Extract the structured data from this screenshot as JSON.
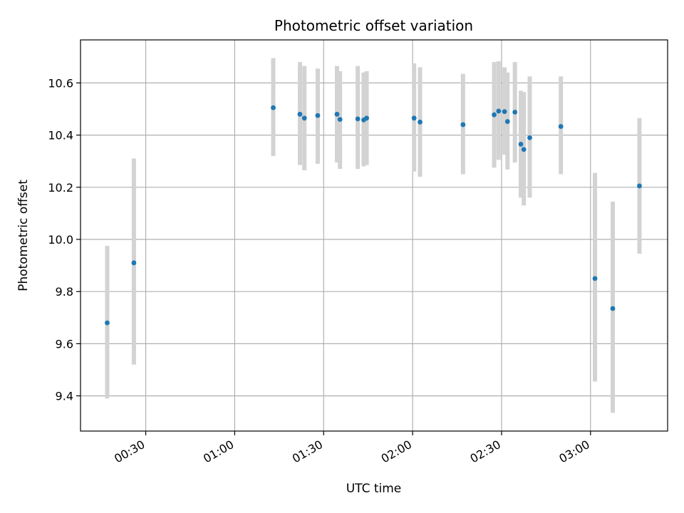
{
  "chart_data": {
    "type": "scatter",
    "title": "Photometric offset variation",
    "xlabel": "UTC time",
    "ylabel": "Photometric offset",
    "x_axis_kind": "time",
    "xlim": [
      "00:08:00",
      "03:26:00"
    ],
    "ylim": [
      9.265,
      10.765
    ],
    "x_ticks": [
      "00:30",
      "01:00",
      "01:30",
      "02:00",
      "02:30",
      "03:00"
    ],
    "y_ticks": [
      9.4,
      9.6,
      9.8,
      10.0,
      10.2,
      10.4,
      10.6
    ],
    "y_tick_labels": [
      "9.4",
      "9.6",
      "9.8",
      "10.0",
      "10.2",
      "10.4",
      "10.6"
    ],
    "grid": true,
    "legend": null,
    "colors": {
      "marker": "#1f77b4",
      "errorbar": "#d3d3d3",
      "grid": "#b0b0b0"
    },
    "points": [
      {
        "x": "00:17:00",
        "y": 9.68,
        "yerr_low": 9.39,
        "yerr_high": 9.975
      },
      {
        "x": "00:26:00",
        "y": 9.91,
        "yerr_low": 9.52,
        "yerr_high": 10.31
      },
      {
        "x": "01:13:00",
        "y": 10.505,
        "yerr_low": 10.32,
        "yerr_high": 10.695
      },
      {
        "x": "01:22:00",
        "y": 10.48,
        "yerr_low": 10.285,
        "yerr_high": 10.68
      },
      {
        "x": "01:23:30",
        "y": 10.465,
        "yerr_low": 10.265,
        "yerr_high": 10.665
      },
      {
        "x": "01:28:00",
        "y": 10.475,
        "yerr_low": 10.29,
        "yerr_high": 10.655
      },
      {
        "x": "01:34:30",
        "y": 10.48,
        "yerr_low": 10.295,
        "yerr_high": 10.665
      },
      {
        "x": "01:35:30",
        "y": 10.46,
        "yerr_low": 10.27,
        "yerr_high": 10.645
      },
      {
        "x": "01:41:30",
        "y": 10.462,
        "yerr_low": 10.27,
        "yerr_high": 10.665
      },
      {
        "x": "01:43:30",
        "y": 10.458,
        "yerr_low": 10.28,
        "yerr_high": 10.64
      },
      {
        "x": "01:44:30",
        "y": 10.465,
        "yerr_low": 10.285,
        "yerr_high": 10.645
      },
      {
        "x": "02:00:30",
        "y": 10.465,
        "yerr_low": 10.26,
        "yerr_high": 10.675
      },
      {
        "x": "02:02:30",
        "y": 10.45,
        "yerr_low": 10.24,
        "yerr_high": 10.66
      },
      {
        "x": "02:17:00",
        "y": 10.44,
        "yerr_low": 10.25,
        "yerr_high": 10.635
      },
      {
        "x": "02:27:30",
        "y": 10.478,
        "yerr_low": 10.275,
        "yerr_high": 10.68
      },
      {
        "x": "02:29:00",
        "y": 10.492,
        "yerr_low": 10.305,
        "yerr_high": 10.683
      },
      {
        "x": "02:31:00",
        "y": 10.49,
        "yerr_low": 10.325,
        "yerr_high": 10.66
      },
      {
        "x": "02:32:00",
        "y": 10.452,
        "yerr_low": 10.268,
        "yerr_high": 10.64
      },
      {
        "x": "02:34:30",
        "y": 10.488,
        "yerr_low": 10.295,
        "yerr_high": 10.68
      },
      {
        "x": "02:36:30",
        "y": 10.365,
        "yerr_low": 10.16,
        "yerr_high": 10.57
      },
      {
        "x": "02:37:30",
        "y": 10.345,
        "yerr_low": 10.13,
        "yerr_high": 10.565
      },
      {
        "x": "02:39:30",
        "y": 10.39,
        "yerr_low": 10.16,
        "yerr_high": 10.625
      },
      {
        "x": "02:50:00",
        "y": 10.433,
        "yerr_low": 10.25,
        "yerr_high": 10.625
      },
      {
        "x": "03:01:30",
        "y": 9.85,
        "yerr_low": 9.455,
        "yerr_high": 10.255
      },
      {
        "x": "03:07:30",
        "y": 9.735,
        "yerr_low": 9.335,
        "yerr_high": 10.145
      },
      {
        "x": "03:16:30",
        "y": 10.205,
        "yerr_low": 9.945,
        "yerr_high": 10.465
      }
    ]
  }
}
